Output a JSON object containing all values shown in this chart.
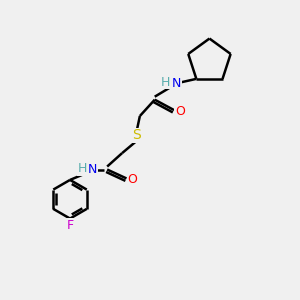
{
  "background_color": "#f0f0f0",
  "atom_colors": {
    "C": "#000000",
    "H": "#5aadad",
    "N": "#0000ee",
    "O": "#ff0000",
    "S": "#ccbb00",
    "F": "#cc00cc"
  },
  "bond_color": "#000000",
  "bond_width": 1.8,
  "figsize": [
    3.0,
    3.0
  ],
  "dpi": 100
}
